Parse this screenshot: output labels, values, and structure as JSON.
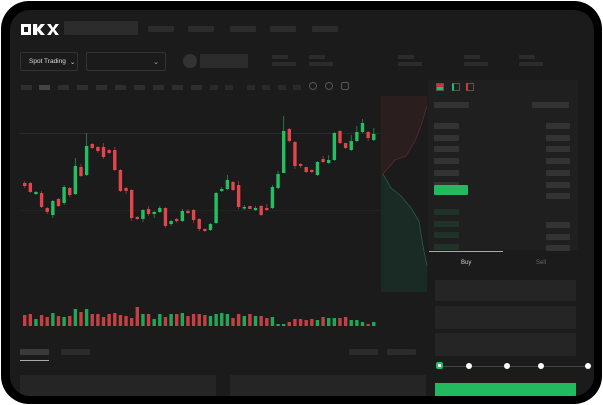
{
  "brand": {
    "logo_text": "OKX"
  },
  "header": {
    "mode_selector": "Spot Trading",
    "mode_chevron": "chevron-down-icon",
    "pair_chevron": "chevron-down-icon"
  },
  "order_form": {
    "tabs": [
      {
        "label": "Buy",
        "active": true
      },
      {
        "label": "Sell",
        "active": false
      }
    ],
    "slider_percent": 0,
    "slider_steps": [
      0,
      25,
      50,
      75,
      100
    ],
    "submit_color": "#22b95f"
  },
  "colors": {
    "up": "#23c063",
    "down": "#e0464b",
    "background": "#1b1b1b"
  },
  "chart_data": {
    "type": "candlestick",
    "candles": [
      [
        68,
        70,
        63,
        65
      ],
      [
        68,
        69,
        58,
        59
      ],
      [
        57,
        60,
        56,
        59
      ],
      [
        58,
        60,
        43,
        44
      ],
      [
        43,
        44,
        37,
        39
      ],
      [
        36,
        51,
        33,
        50
      ],
      [
        52,
        53,
        44,
        45
      ],
      [
        48,
        66,
        46,
        64
      ],
      [
        63,
        64,
        54,
        56
      ],
      [
        57,
        93,
        56,
        85
      ],
      [
        84,
        87,
        74,
        75
      ],
      [
        76,
        118,
        75,
        105
      ],
      [
        107,
        108,
        102,
        103
      ],
      [
        104,
        105,
        98,
        100
      ],
      [
        104,
        108,
        92,
        94
      ],
      [
        101,
        102,
        97,
        98
      ],
      [
        101,
        104,
        80,
        81
      ],
      [
        81,
        82,
        59,
        60
      ],
      [
        63,
        64,
        57,
        60
      ],
      [
        61,
        62,
        30,
        33
      ],
      [
        34,
        35,
        31,
        32
      ],
      [
        32,
        42,
        29,
        41
      ],
      [
        42,
        45,
        35,
        37
      ],
      [
        37,
        40,
        33,
        39
      ],
      [
        39,
        45,
        38,
        43
      ],
      [
        43,
        44,
        23,
        25
      ],
      [
        27,
        31,
        25,
        30
      ],
      [
        32,
        33,
        28,
        30
      ],
      [
        30,
        42,
        29,
        40
      ],
      [
        40,
        42,
        37,
        38
      ],
      [
        41,
        42,
        28,
        31
      ],
      [
        32,
        33,
        20,
        22
      ],
      [
        22,
        23,
        19,
        20
      ],
      [
        21,
        28,
        20,
        27
      ],
      [
        28,
        59,
        27,
        58
      ],
      [
        60,
        64,
        59,
        62
      ],
      [
        62,
        76,
        61,
        71
      ],
      [
        69,
        70,
        60,
        61
      ],
      [
        66,
        70,
        42,
        44
      ],
      [
        43,
        46,
        41,
        44
      ],
      [
        45,
        45,
        42,
        42
      ],
      [
        41,
        45,
        40,
        43
      ],
      [
        45,
        46,
        35,
        36
      ],
      [
        43,
        47,
        40,
        41
      ],
      [
        43,
        66,
        42,
        64
      ],
      [
        63,
        80,
        62,
        77
      ],
      [
        78,
        135,
        78,
        120
      ],
      [
        122,
        123,
        108,
        110
      ],
      [
        109,
        110,
        82,
        85
      ],
      [
        87,
        88,
        83,
        85
      ],
      [
        84,
        84,
        78,
        79
      ],
      [
        81,
        82,
        78,
        79
      ],
      [
        76,
        90,
        75,
        89
      ],
      [
        92,
        95,
        88,
        89
      ],
      [
        88,
        96,
        87,
        91
      ],
      [
        91,
        119,
        90,
        118
      ],
      [
        120,
        121,
        107,
        108
      ],
      [
        108,
        108,
        102,
        103
      ],
      [
        101,
        116,
        100,
        110
      ],
      [
        110,
        125,
        109,
        119
      ],
      [
        119,
        132,
        118,
        128
      ],
      [
        119,
        120,
        110,
        113
      ],
      [
        111,
        123,
        110,
        117
      ]
    ],
    "candle_format": [
      "open",
      "high",
      "low",
      "close"
    ],
    "volume": [
      11,
      12,
      7,
      11,
      9,
      13,
      10,
      9,
      10,
      17,
      14,
      17,
      12,
      12,
      9,
      12,
      13,
      11,
      10,
      8,
      19,
      12,
      12,
      7,
      12,
      9,
      12,
      12,
      13,
      10,
      12,
      12,
      11,
      10,
      12,
      13,
      12,
      8,
      12,
      10,
      12,
      10,
      10,
      8,
      9,
      2,
      2,
      4,
      7,
      7,
      6,
      7,
      6,
      9,
      8,
      8,
      8,
      9,
      6,
      6,
      4,
      2,
      4
    ]
  }
}
